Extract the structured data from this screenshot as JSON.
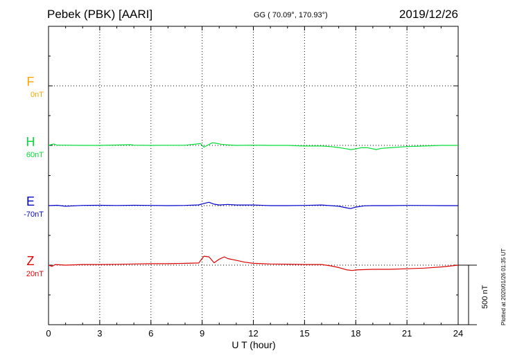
{
  "header": {
    "station": "Pebek (PBK)  [AARI]",
    "coords": "GG ( 70.09°, 170.93°)",
    "date": "2019/12/26"
  },
  "footer": {
    "plotted": "Plotted at 2020/01/26 01:35 UT",
    "scale_label": "500 nT"
  },
  "chart_data": {
    "type": "line",
    "title": "Pebek (PBK)  [AARI]",
    "xlabel": "U T (hour)",
    "ylabel": "",
    "xlim": [
      0,
      24
    ],
    "x_ticks": [
      "0",
      "3",
      "6",
      "9",
      "12",
      "15",
      "18",
      "21",
      "24"
    ],
    "grid": true,
    "scale_bar_nT": 500,
    "series": [
      {
        "name": "F",
        "offset_label": "0nT",
        "color": "#ffa500",
        "x": [],
        "y": []
      },
      {
        "name": "H",
        "offset_label": "60nT",
        "color": "#00dd33",
        "x": [
          0,
          0.3,
          0.5,
          1,
          2,
          3,
          4,
          4.8,
          5,
          6,
          7,
          8,
          8.9,
          9.1,
          9.3,
          9.6,
          9.8,
          10.1,
          10.4,
          11,
          12,
          13,
          14,
          15,
          16,
          16.5,
          17,
          17.3,
          17.7,
          18,
          18.3,
          18.7,
          19.2,
          19.5,
          20,
          21,
          22,
          23,
          24
        ],
        "y": [
          0,
          12,
          2,
          2,
          0,
          0,
          3,
          6,
          2,
          0,
          1,
          1,
          15,
          -15,
          0,
          22,
          18,
          10,
          5,
          0,
          2,
          0,
          0,
          -5,
          -5,
          -10,
          -18,
          -25,
          -35,
          -30,
          -20,
          -20,
          -35,
          -25,
          -20,
          -10,
          -5,
          0,
          0
        ]
      },
      {
        "name": "E",
        "offset_label": "-70nT",
        "color": "#0000cc",
        "x": [
          0,
          0.5,
          1,
          2,
          3,
          4,
          5,
          6,
          7,
          8,
          8.8,
          9.1,
          9.4,
          9.7,
          10,
          10.5,
          11,
          12,
          13,
          14,
          15,
          16,
          16.5,
          17,
          17.5,
          17.7,
          18,
          18.5,
          19,
          20,
          21,
          22,
          23,
          24
        ],
        "y": [
          0,
          3,
          -5,
          2,
          3,
          1,
          3,
          2,
          0,
          2,
          6,
          18,
          28,
          12,
          5,
          10,
          5,
          5,
          0,
          0,
          2,
          5,
          0,
          -5,
          -20,
          -25,
          -12,
          -2,
          0,
          0,
          2,
          1,
          0,
          0
        ]
      },
      {
        "name": "Z",
        "offset_label": "20nT",
        "color": "#dd0000",
        "x": [
          0,
          0.2,
          0.4,
          1,
          2,
          3,
          4,
          5,
          6,
          7,
          8,
          8.8,
          9.1,
          9.4,
          9.7,
          10,
          10.3,
          10.5,
          11,
          11.5,
          12,
          13,
          14,
          15,
          16,
          16.5,
          17,
          17.5,
          17.8,
          18,
          19,
          20,
          21,
          22,
          23,
          24
        ],
        "y": [
          0,
          -10,
          5,
          0,
          5,
          5,
          7,
          10,
          12,
          12,
          15,
          18,
          75,
          70,
          20,
          50,
          70,
          55,
          40,
          25,
          15,
          10,
          8,
          5,
          5,
          -5,
          -20,
          -40,
          -45,
          -40,
          -35,
          -35,
          -30,
          -25,
          -15,
          0
        ]
      }
    ]
  }
}
